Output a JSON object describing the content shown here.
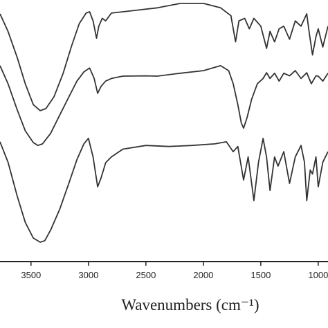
{
  "chart_data": {
    "type": "line",
    "xlabel": "Wavenumbers (cm⁻¹)",
    "xlim": [
      3770,
      915
    ],
    "ylim": [
      0,
      100
    ],
    "xticks": [
      3500,
      3000,
      2500,
      2000,
      1500,
      1000
    ],
    "color": "#333333",
    "series": [
      {
        "x": [
          3770,
          3700,
          3620,
          3550,
          3480,
          3420,
          3370,
          3300,
          3220,
          3150,
          3080,
          3020,
          2990,
          2960,
          2930,
          2910,
          2880,
          2850,
          2800,
          2600,
          2400,
          2200,
          2000,
          1850,
          1760,
          1720,
          1690,
          1640,
          1600,
          1560,
          1500,
          1450,
          1420,
          1380,
          1340,
          1300,
          1250,
          1200,
          1150,
          1100,
          1080,
          1050,
          1020,
          1000,
          960,
          915
        ],
        "values": [
          94.7,
          88,
          78,
          68,
          60,
          57.7,
          58.5,
          63,
          72,
          82,
          91,
          95,
          95.5,
          92,
          85.4,
          90,
          93,
          92,
          95,
          96,
          97,
          98.7,
          98.7,
          97,
          94,
          84,
          92,
          93,
          89,
          93,
          90,
          81.5,
          88,
          84,
          89,
          90,
          85,
          92,
          90,
          94.7,
          88,
          79,
          86,
          89,
          82,
          90
        ]
      },
      {
        "x": [
          3770,
          3700,
          3620,
          3550,
          3480,
          3440,
          3400,
          3330,
          3250,
          3170,
          3100,
          3040,
          2990,
          2950,
          2920,
          2890,
          2850,
          2800,
          2700,
          2500,
          2400,
          2200,
          2000,
          1850,
          1780,
          1740,
          1700,
          1670,
          1650,
          1620,
          1580,
          1530,
          1480,
          1450,
          1420,
          1380,
          1340,
          1300,
          1250,
          1200,
          1150,
          1100,
          1060,
          1020,
          1000,
          960,
          915
        ],
        "values": [
          74.9,
          68,
          58,
          50,
          45.5,
          44.4,
          45,
          49,
          56,
          63,
          69,
          72.5,
          74,
          70,
          64.3,
          67,
          69,
          70,
          70.9,
          71,
          70.9,
          72,
          73,
          74.9,
          73,
          68,
          60,
          53,
          51,
          55,
          62,
          68,
          70,
          72.2,
          70,
          72,
          69,
          72,
          71,
          73,
          70,
          72.2,
          68,
          71,
          70.9,
          69,
          72
        ]
      },
      {
        "x": [
          3770,
          3700,
          3620,
          3550,
          3480,
          3420,
          3380,
          3330,
          3250,
          3170,
          3100,
          3040,
          3000,
          2960,
          2920,
          2890,
          2850,
          2800,
          2700,
          2500,
          2300,
          2100,
          1900,
          1800,
          1740,
          1700,
          1650,
          1610,
          1560,
          1520,
          1480,
          1450,
          1420,
          1380,
          1350,
          1300,
          1250,
          1200,
          1150,
          1120,
          1100,
          1070,
          1050,
          1020,
          1000,
          960,
          915
        ],
        "values": [
          45.8,
          38,
          25,
          15,
          9,
          7.4,
          8,
          12,
          20,
          30,
          39,
          45,
          47.1,
          40,
          28.6,
          32,
          37.8,
          40,
          43,
          44.4,
          44,
          44.4,
          45,
          45.8,
          42,
          44,
          31.2,
          40,
          23.3,
          38,
          47.1,
          40,
          27.2,
          40,
          36.5,
          42,
          29.9,
          40,
          44.4,
          38,
          23.3,
          35,
          33.5,
          40,
          28.6,
          38,
          42
        ]
      }
    ]
  }
}
